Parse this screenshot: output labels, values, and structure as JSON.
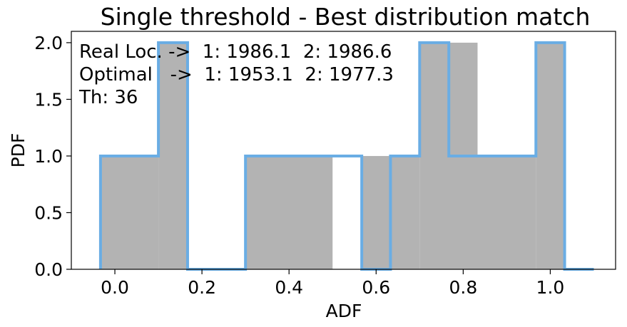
{
  "chart_data": {
    "type": "histogram",
    "title": "Single threshold - Best distribution match",
    "xlabel": "ADF",
    "ylabel": "PDF",
    "xlim": [
      -0.1,
      1.15
    ],
    "ylim": [
      0,
      2.1
    ],
    "xticks": [
      0.0,
      0.2,
      0.4,
      0.6,
      0.8,
      1.0
    ],
    "xtick_labels": [
      "0.0",
      "0.2",
      "0.4",
      "0.6",
      "0.8",
      "1.0"
    ],
    "yticks": [
      0.0,
      0.5,
      1.0,
      1.5,
      2.0
    ],
    "ytick_labels": [
      "0.0",
      "0.5",
      "1.0",
      "1.5",
      "2.0"
    ],
    "grid": false,
    "filled_hist": {
      "color": "#b3b3b3",
      "bins": [
        {
          "x0": -0.033,
          "x1": 0.1,
          "value": 1.0
        },
        {
          "x0": 0.1,
          "x1": 0.167,
          "value": 2.0
        },
        {
          "x0": 0.3,
          "x1": 0.5,
          "value": 1.0
        },
        {
          "x0": 0.567,
          "x1": 0.7,
          "value": 1.0
        },
        {
          "x0": 0.7,
          "x1": 0.833,
          "value": 2.0
        },
        {
          "x0": 0.833,
          "x1": 0.967,
          "value": 1.0
        },
        {
          "x0": 0.967,
          "x1": 1.033,
          "value": 2.0
        }
      ]
    },
    "step_hist": {
      "color": "#6aade4",
      "points": [
        [
          -0.033,
          0
        ],
        [
          -0.033,
          1.0
        ],
        [
          0.1,
          1.0
        ],
        [
          0.1,
          2.0
        ],
        [
          0.167,
          2.0
        ],
        [
          0.167,
          0
        ],
        [
          0.3,
          0
        ],
        [
          0.3,
          1.0
        ],
        [
          0.567,
          1.0
        ],
        [
          0.567,
          0
        ],
        [
          0.633,
          0
        ],
        [
          0.633,
          1.0
        ],
        [
          0.7,
          1.0
        ],
        [
          0.7,
          2.0
        ],
        [
          0.767,
          2.0
        ],
        [
          0.767,
          1.0
        ],
        [
          0.967,
          1.0
        ],
        [
          0.967,
          2.0
        ],
        [
          1.033,
          2.0
        ],
        [
          1.033,
          0
        ],
        [
          1.1,
          0
        ]
      ]
    },
    "annotations": [
      "Real Loc. ->  1: 1986.1  2: 1986.6",
      "Optimal   ->  1: 1953.1  2: 1977.3",
      "Th: 36"
    ]
  }
}
